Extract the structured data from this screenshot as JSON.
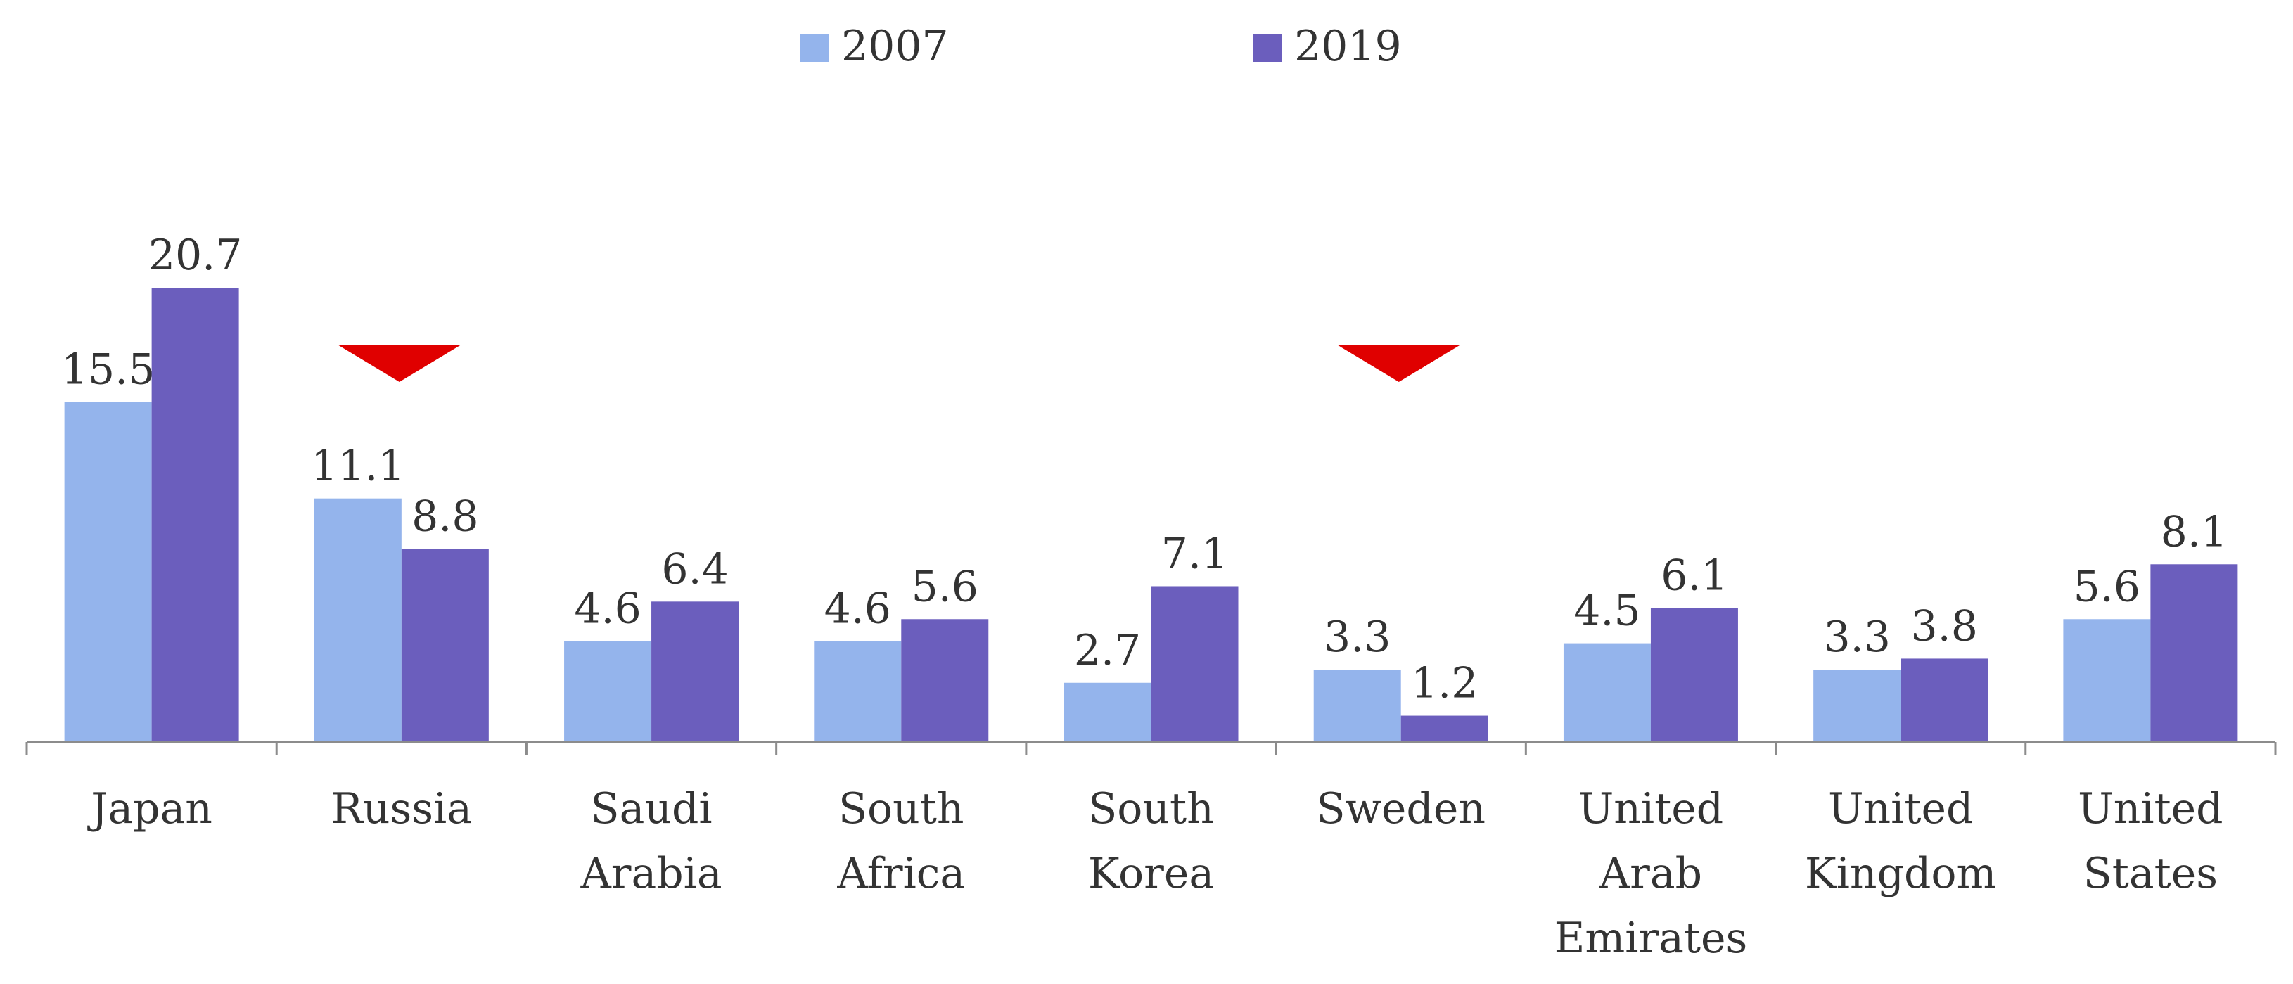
{
  "chart_data": {
    "type": "bar",
    "title": "",
    "xlabel": "",
    "ylabel": "",
    "ylim": [
      0,
      22
    ],
    "grid": false,
    "legend_position": "top-center",
    "categories": [
      [
        "Japan"
      ],
      [
        "Russia"
      ],
      [
        "Saudi",
        "Arabia"
      ],
      [
        "South",
        "Africa"
      ],
      [
        "South",
        "Korea"
      ],
      [
        "Sweden"
      ],
      [
        "United",
        "Arab",
        "Emirates"
      ],
      [
        "United",
        "Kingdom"
      ],
      [
        "United",
        "States"
      ]
    ],
    "series": [
      {
        "name": "2007",
        "color": "#94b4ec",
        "values": [
          15.5,
          11.1,
          4.6,
          4.6,
          2.7,
          3.3,
          4.5,
          3.3,
          5.6
        ],
        "labels": [
          "15.5",
          "11.1",
          "4.6",
          "4.6",
          "2.7",
          "3.3",
          "4.5",
          "3.3",
          "5.6"
        ]
      },
      {
        "name": "2019",
        "color": "#6b5ebd",
        "values": [
          20.7,
          8.8,
          6.4,
          5.6,
          7.1,
          1.2,
          6.1,
          3.8,
          8.1
        ],
        "labels": [
          "20.7",
          "8.8",
          "6.4",
          "5.6",
          "7.1",
          "1.2",
          "6.1",
          "3.8",
          "8.1"
        ]
      }
    ],
    "annotations": [
      {
        "type": "down-triangle-marker",
        "category": "Russia",
        "color": "#e00000"
      },
      {
        "type": "down-triangle-marker",
        "category": "Sweden",
        "color": "#e00000"
      }
    ],
    "axis_color": "#8c8c8c"
  }
}
